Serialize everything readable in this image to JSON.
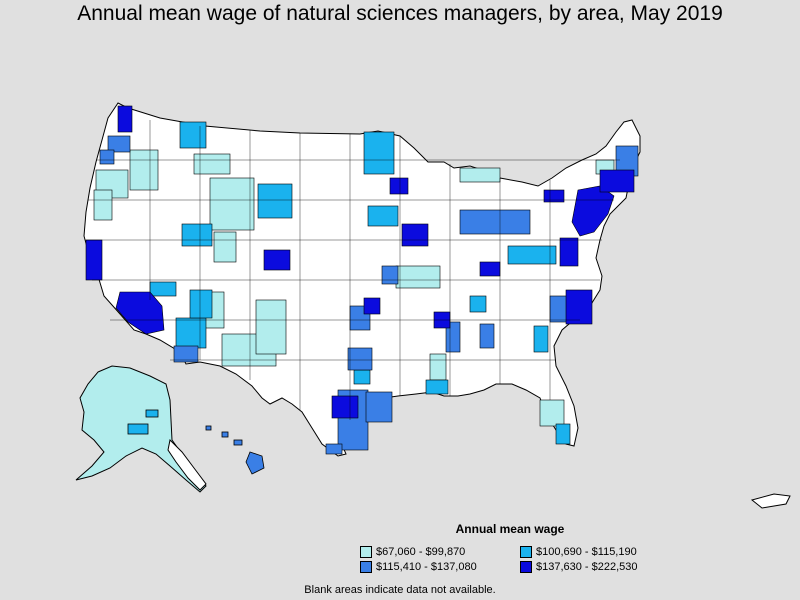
{
  "title": "Annual mean wage of natural sciences managers, by area, May 2019",
  "colors": {
    "background": "#e0e0e0",
    "no_data": "#ffffff",
    "tier1": "#b2eded",
    "tier2": "#1ab2ee",
    "tier3": "#3a7fe6",
    "tier4": "#0b0bde",
    "border": "#000000"
  },
  "legend": {
    "title": "Annual mean wage",
    "items": [
      {
        "label": "$67,060 - $99,870",
        "color": "#b2eded"
      },
      {
        "label": "$100,690 - $115,190",
        "color": "#1ab2ee"
      },
      {
        "label": "$115,410 - $137,080",
        "color": "#3a7fe6"
      },
      {
        "label": "$137,630 - $222,530",
        "color": "#0b0bde"
      }
    ]
  },
  "note": "Blank areas indicate data not available."
}
